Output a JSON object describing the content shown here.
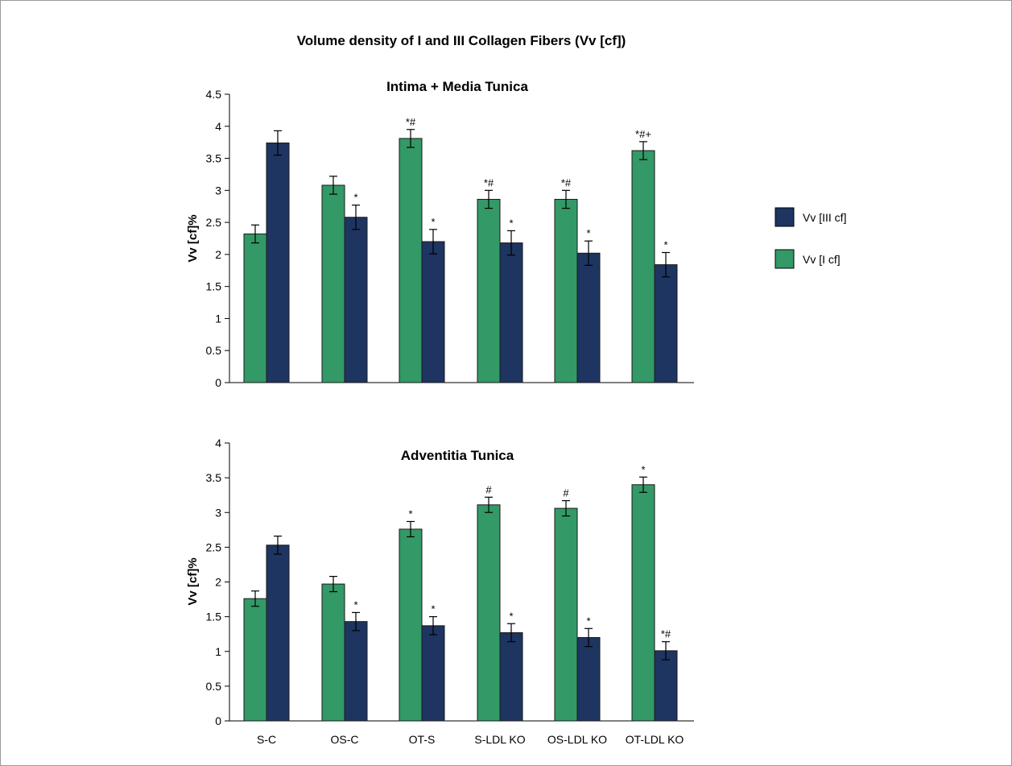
{
  "title": "Volume density of I and III Collagen Fibers (Vv [cf])",
  "legend": [
    {
      "label": "Vv [III cf]",
      "color": "#1e3461"
    },
    {
      "label": "Vv [I cf]",
      "color": "#339966"
    }
  ],
  "chart_data": [
    {
      "type": "bar",
      "title": "Intima + Media Tunica",
      "ylabel": "Vv [cf]%",
      "ylim": [
        0,
        4.5
      ],
      "yticks": [
        "0",
        "0.5",
        "1",
        "1.5",
        "2",
        "2.5",
        "3",
        "3.5",
        "4",
        "4.5"
      ],
      "categories": [
        "S-C",
        "OS-C",
        "OT-S",
        "S-LDL KO",
        "OS-LDL KO",
        "OT-LDL KO"
      ],
      "series": [
        {
          "name": "Vv [I cf]",
          "color": "#339966",
          "values": [
            2.32,
            3.08,
            3.81,
            2.86,
            2.86,
            3.62
          ],
          "errors": [
            0.14,
            0.14,
            0.14,
            0.14,
            0.14,
            0.14
          ],
          "labels": [
            "",
            "",
            "*#",
            "*#",
            "*#",
            "*#+"
          ]
        },
        {
          "name": "Vv [III cf]",
          "color": "#1e3461",
          "values": [
            3.74,
            2.58,
            2.2,
            2.18,
            2.02,
            1.84
          ],
          "errors": [
            0.19,
            0.19,
            0.19,
            0.19,
            0.19,
            0.19
          ],
          "labels": [
            "",
            "*",
            "*",
            "*",
            "*",
            "*"
          ]
        }
      ]
    },
    {
      "type": "bar",
      "title": "Adventitia Tunica",
      "ylabel": "Vv [cf]%",
      "ylim": [
        0,
        4
      ],
      "yticks": [
        "0",
        "0.5",
        "1",
        "1.5",
        "2",
        "2.5",
        "3",
        "3.5",
        "4"
      ],
      "categories": [
        "S-C",
        "OS-C",
        "OT-S",
        "S-LDL KO",
        "OS-LDL KO",
        "OT-LDL KO"
      ],
      "series": [
        {
          "name": "Vv [I cf]",
          "color": "#339966",
          "values": [
            1.76,
            1.97,
            2.76,
            3.11,
            3.06,
            3.4
          ],
          "errors": [
            0.11,
            0.11,
            0.11,
            0.11,
            0.11,
            0.11
          ],
          "labels": [
            "",
            "",
            "*",
            "#",
            "#",
            "*"
          ]
        },
        {
          "name": "Vv [III cf]",
          "color": "#1e3461",
          "values": [
            2.53,
            1.43,
            1.37,
            1.27,
            1.2,
            1.01
          ],
          "errors": [
            0.13,
            0.13,
            0.13,
            0.13,
            0.13,
            0.13
          ],
          "labels": [
            "",
            "*",
            "*",
            "*",
            "*",
            "*#"
          ]
        }
      ]
    }
  ]
}
